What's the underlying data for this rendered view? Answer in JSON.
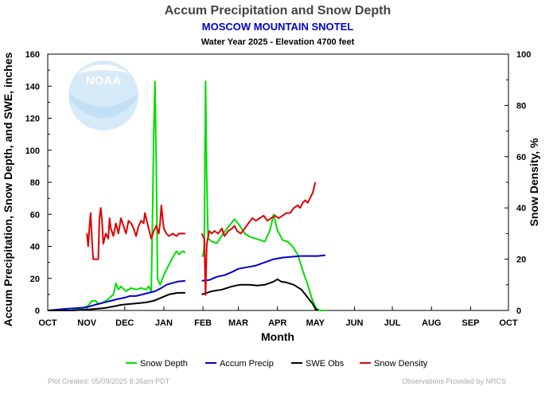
{
  "chart_data": {
    "type": "line",
    "title": "Accum Precipitation and Snow Depth",
    "subtitle": "MOSCOW MOUNTAIN SNOTEL",
    "subtitle2": "Water Year 2025 -  Elevation 4700 feet",
    "xlabel": "Month",
    "ylabel_left": "Accum Precipitation, Snow Depth, and SWE, inches",
    "ylabel_right": "Snow Density, %",
    "x_tick_labels": [
      "OCT",
      "NOV",
      "DEC",
      "JAN",
      "FEB",
      "MAR",
      "APR",
      "MAY",
      "JUN",
      "JUL",
      "AUG",
      "SEP",
      "OCT"
    ],
    "y_left_ticks": [
      "0",
      "20",
      "40",
      "60",
      "80",
      "100",
      "120",
      "140",
      "160"
    ],
    "y_right_ticks": [
      "0",
      "20",
      "40",
      "60",
      "80",
      "100"
    ],
    "y_left_lim": [
      0,
      160
    ],
    "y_right_lim": [
      0,
      100
    ],
    "grid": false,
    "legend_position": "bottom",
    "series": [
      {
        "name": "Snow Depth",
        "color": "#00dd00",
        "axis": "left",
        "segments": [
          [
            [
              "2024-10-01",
              0
            ],
            [
              "2024-10-20",
              0
            ],
            [
              "2024-10-28",
              1
            ],
            [
              "2024-11-02",
              3
            ],
            [
              "2024-11-05",
              6
            ],
            [
              "2024-11-08",
              6
            ],
            [
              "2024-11-10",
              4
            ],
            [
              "2024-11-14",
              5
            ],
            [
              "2024-11-18",
              7
            ],
            [
              "2024-11-22",
              10
            ],
            [
              "2024-11-24",
              17
            ],
            [
              "2024-11-26",
              13
            ],
            [
              "2024-11-28",
              15
            ],
            [
              "2024-12-02",
              12
            ],
            [
              "2024-12-06",
              14
            ],
            [
              "2024-12-10",
              13
            ],
            [
              "2024-12-14",
              14
            ],
            [
              "2024-12-18",
              13
            ],
            [
              "2024-12-20",
              15
            ],
            [
              "2024-12-22",
              12
            ],
            [
              "2024-12-23",
              60
            ],
            [
              "2024-12-24",
              110
            ],
            [
              "2024-12-25",
              143
            ],
            [
              "2024-12-26",
              90
            ],
            [
              "2024-12-27",
              20
            ],
            [
              "2024-12-29",
              16
            ],
            [
              "2025-01-01",
              22
            ],
            [
              "2025-01-04",
              27
            ],
            [
              "2025-01-08",
              33
            ],
            [
              "2025-01-11",
              37
            ],
            [
              "2025-01-13",
              35
            ],
            [
              "2025-01-16",
              37
            ],
            [
              "2025-01-18",
              36
            ]
          ],
          [
            [
              "2025-01-31",
              34
            ],
            [
              "2025-02-01",
              34
            ],
            [
              "2025-02-02",
              40
            ],
            [
              "2025-02-03",
              143
            ],
            [
              "2025-02-04",
              80
            ],
            [
              "2025-02-05",
              45
            ],
            [
              "2025-02-08",
              43
            ],
            [
              "2025-02-12",
              42
            ],
            [
              "2025-02-17",
              48
            ],
            [
              "2025-02-22",
              53
            ],
            [
              "2025-02-26",
              57
            ],
            [
              "2025-03-02",
              53
            ],
            [
              "2025-03-06",
              48
            ],
            [
              "2025-03-10",
              46
            ],
            [
              "2025-03-14",
              45
            ],
            [
              "2025-03-18",
              44
            ],
            [
              "2025-03-22",
              43
            ],
            [
              "2025-03-26",
              50
            ],
            [
              "2025-03-29",
              60
            ],
            [
              "2025-04-01",
              50
            ],
            [
              "2025-04-05",
              44
            ],
            [
              "2025-04-09",
              43
            ],
            [
              "2025-04-13",
              40
            ],
            [
              "2025-04-17",
              35
            ],
            [
              "2025-04-21",
              25
            ],
            [
              "2025-04-25",
              16
            ],
            [
              "2025-04-28",
              8
            ],
            [
              "2025-04-30",
              4
            ],
            [
              "2025-05-02",
              1
            ],
            [
              "2025-05-05",
              0
            ],
            [
              "2025-05-09",
              0
            ]
          ]
        ]
      },
      {
        "name": "Accum Precip",
        "color": "#0000cc",
        "axis": "left",
        "segments": [
          [
            [
              "2024-10-01",
              0
            ],
            [
              "2024-10-15",
              1
            ],
            [
              "2024-10-25",
              1.5
            ],
            [
              "2024-11-01",
              2
            ],
            [
              "2024-11-05",
              3
            ],
            [
              "2024-11-10",
              4
            ],
            [
              "2024-11-15",
              5
            ],
            [
              "2024-11-20",
              6
            ],
            [
              "2024-11-25",
              7
            ],
            [
              "2024-12-01",
              8
            ],
            [
              "2024-12-05",
              9
            ],
            [
              "2024-12-10",
              9
            ],
            [
              "2024-12-15",
              10
            ],
            [
              "2024-12-20",
              11
            ],
            [
              "2024-12-25",
              12
            ],
            [
              "2024-12-30",
              14
            ],
            [
              "2025-01-03",
              16
            ],
            [
              "2025-01-07",
              17
            ],
            [
              "2025-01-12",
              18
            ],
            [
              "2025-01-18",
              18.5
            ]
          ],
          [
            [
              "2025-01-31",
              18.5
            ],
            [
              "2025-02-06",
              19
            ],
            [
              "2025-02-12",
              21
            ],
            [
              "2025-02-18",
              22
            ],
            [
              "2025-02-24",
              24
            ],
            [
              "2025-03-01",
              26
            ],
            [
              "2025-03-08",
              27
            ],
            [
              "2025-03-15",
              28
            ],
            [
              "2025-03-22",
              30
            ],
            [
              "2025-03-29",
              32
            ],
            [
              "2025-04-05",
              33
            ],
            [
              "2025-04-12",
              33.5
            ],
            [
              "2025-04-19",
              34
            ],
            [
              "2025-04-26",
              34
            ],
            [
              "2025-05-03",
              34
            ],
            [
              "2025-05-09",
              34.5
            ]
          ]
        ]
      },
      {
        "name": "SWE Obs",
        "color": "#000000",
        "axis": "left",
        "segments": [
          [
            [
              "2024-10-01",
              0
            ],
            [
              "2024-10-20",
              0
            ],
            [
              "2024-11-01",
              0.5
            ],
            [
              "2024-11-08",
              1
            ],
            [
              "2024-11-15",
              1.5
            ],
            [
              "2024-11-22",
              2.5
            ],
            [
              "2024-11-28",
              3.5
            ],
            [
              "2024-12-05",
              4
            ],
            [
              "2024-12-12",
              4.5
            ],
            [
              "2024-12-18",
              5
            ],
            [
              "2024-12-24",
              6
            ],
            [
              "2024-12-30",
              8
            ],
            [
              "2025-01-05",
              10
            ],
            [
              "2025-01-12",
              11
            ],
            [
              "2025-01-18",
              11
            ]
          ],
          [
            [
              "2025-01-31",
              10
            ],
            [
              "2025-02-08",
              12
            ],
            [
              "2025-02-16",
              13
            ],
            [
              "2025-02-24",
              15
            ],
            [
              "2025-03-02",
              16
            ],
            [
              "2025-03-10",
              16
            ],
            [
              "2025-03-16",
              15.5
            ],
            [
              "2025-03-22",
              16
            ],
            [
              "2025-03-29",
              18
            ],
            [
              "2025-04-01",
              19.5
            ],
            [
              "2025-04-04",
              18
            ],
            [
              "2025-04-08",
              17.5
            ],
            [
              "2025-04-14",
              16
            ],
            [
              "2025-04-20",
              13
            ],
            [
              "2025-04-25",
              8
            ],
            [
              "2025-04-29",
              4
            ],
            [
              "2025-05-01",
              1
            ],
            [
              "2025-05-03",
              0
            ]
          ]
        ]
      },
      {
        "name": "Snow Density",
        "color": "#dd0000",
        "axis": "right",
        "segments": [
          [
            [
              "2024-11-01",
              30
            ],
            [
              "2024-11-02",
              25
            ],
            [
              "2024-11-03",
              32
            ],
            [
              "2024-11-04",
              38
            ],
            [
              "2024-11-05",
              28
            ],
            [
              "2024-11-06",
              20
            ],
            [
              "2024-11-08",
              20
            ],
            [
              "2024-11-10",
              20
            ],
            [
              "2024-11-11",
              36
            ],
            [
              "2024-11-12",
              40
            ],
            [
              "2024-11-13",
              35
            ],
            [
              "2024-11-14",
              26
            ],
            [
              "2024-11-16",
              30
            ],
            [
              "2024-11-18",
              28
            ],
            [
              "2024-11-19",
              36
            ],
            [
              "2024-11-20",
              32
            ],
            [
              "2024-11-22",
              29
            ],
            [
              "2024-11-24",
              34
            ],
            [
              "2024-11-26",
              30
            ],
            [
              "2024-11-28",
              36
            ],
            [
              "2024-11-30",
              33
            ],
            [
              "2024-12-02",
              30
            ],
            [
              "2024-12-04",
              35
            ],
            [
              "2024-12-06",
              34
            ],
            [
              "2024-12-08",
              32
            ],
            [
              "2024-12-10",
              29
            ],
            [
              "2024-12-12",
              33
            ],
            [
              "2024-12-14",
              35
            ],
            [
              "2024-12-16",
              34
            ],
            [
              "2024-12-17",
              38
            ],
            [
              "2024-12-18",
              36
            ],
            [
              "2024-12-20",
              32
            ],
            [
              "2024-12-22",
              28
            ],
            [
              "2024-12-24",
              31
            ],
            [
              "2024-12-26",
              33
            ],
            [
              "2024-12-28",
              30
            ],
            [
              "2024-12-29",
              34
            ],
            [
              "2024-12-30",
              41
            ],
            [
              "2024-12-31",
              36
            ],
            [
              "2025-01-01",
              32
            ],
            [
              "2025-01-03",
              30
            ],
            [
              "2025-01-05",
              29
            ],
            [
              "2025-01-08",
              30
            ],
            [
              "2025-01-11",
              29
            ],
            [
              "2025-01-13",
              30
            ],
            [
              "2025-01-15",
              30
            ],
            [
              "2025-01-18",
              30
            ]
          ],
          [
            [
              "2025-01-31",
              30
            ],
            [
              "2025-02-02",
              28
            ],
            [
              "2025-02-03",
              6
            ],
            [
              "2025-02-04",
              26
            ],
            [
              "2025-02-06",
              31
            ],
            [
              "2025-02-08",
              30
            ],
            [
              "2025-02-10",
              31
            ],
            [
              "2025-02-13",
              30
            ],
            [
              "2025-02-16",
              32
            ],
            [
              "2025-02-18",
              29
            ],
            [
              "2025-02-21",
              31
            ],
            [
              "2025-02-24",
              32
            ],
            [
              "2025-02-26",
              33
            ],
            [
              "2025-02-28",
              31
            ],
            [
              "2025-03-03",
              30
            ],
            [
              "2025-03-06",
              32
            ],
            [
              "2025-03-09",
              34
            ],
            [
              "2025-03-12",
              36
            ],
            [
              "2025-03-15",
              35
            ],
            [
              "2025-03-18",
              36
            ],
            [
              "2025-03-21",
              37
            ],
            [
              "2025-03-24",
              35
            ],
            [
              "2025-03-27",
              36
            ],
            [
              "2025-03-30",
              37
            ],
            [
              "2025-04-02",
              36
            ],
            [
              "2025-04-05",
              37
            ],
            [
              "2025-04-08",
              38
            ],
            [
              "2025-04-11",
              38
            ],
            [
              "2025-04-14",
              40
            ],
            [
              "2025-04-17",
              41
            ],
            [
              "2025-04-19",
              40
            ],
            [
              "2025-04-21",
              42
            ],
            [
              "2025-04-23",
              43
            ],
            [
              "2025-04-25",
              42
            ],
            [
              "2025-04-27",
              44
            ],
            [
              "2025-04-29",
              46
            ],
            [
              "2025-05-01",
              50
            ]
          ]
        ]
      }
    ]
  },
  "footer": {
    "created": "Plot Created:  05/09/2025  8:36am PDT",
    "provider": "Observations Provided by NRCS"
  },
  "logo": {
    "text": "NOAA"
  },
  "colors": {
    "title": "#444444",
    "subtitle": "#0000cc",
    "logo": "#cfe6f7"
  }
}
